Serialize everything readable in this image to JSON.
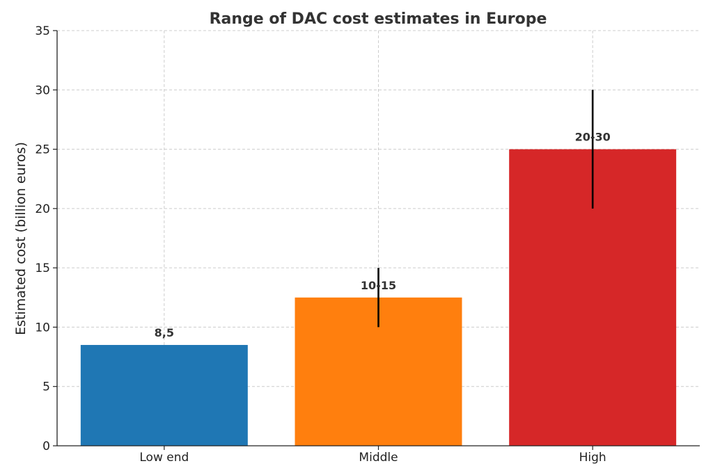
{
  "chart_data": {
    "type": "bar",
    "title": "Range of DAC cost estimates in Europe",
    "xlabel": "",
    "ylabel": "Estimated cost (billion euros)",
    "ylim": [
      0,
      35
    ],
    "yticks": [
      0,
      5,
      10,
      15,
      20,
      25,
      30,
      35
    ],
    "grid": true,
    "categories": [
      "Low end",
      "Middle",
      "High"
    ],
    "values": [
      8.5,
      12.5,
      25
    ],
    "error_ranges": [
      null,
      [
        10,
        15
      ],
      [
        20,
        30
      ]
    ],
    "data_labels": [
      "8,5",
      "10-15",
      "20-30"
    ],
    "colors": [
      "#1f77b4",
      "#ff7f0e",
      "#d62728"
    ]
  }
}
